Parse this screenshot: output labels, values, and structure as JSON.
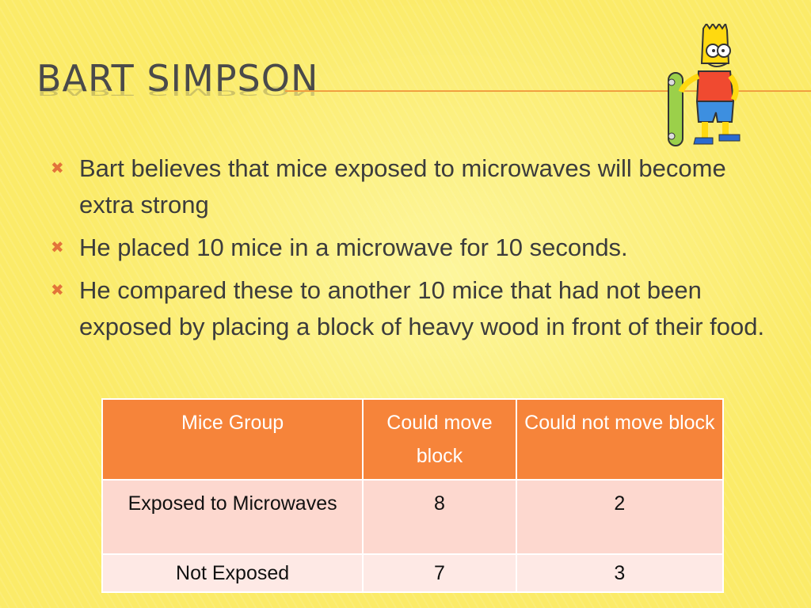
{
  "slide": {
    "title": "BART SIMPSON",
    "image_alt": "Bart Simpson with skateboard",
    "bullets": [
      "Bart believes that mice exposed to microwaves will become extra strong",
      "He placed 10 mice in a microwave for 10 seconds.",
      "He compared these to another 10 mice that had not been exposed by placing a block of heavy wood in front of their food."
    ],
    "bullet_icon": "x-mark-icon"
  },
  "table": {
    "headers": [
      "Mice Group",
      "Could move block",
      "Could not move block"
    ],
    "rows": [
      [
        "Exposed to Microwaves",
        "8",
        "2"
      ],
      [
        "Not Exposed",
        "7",
        "3"
      ]
    ]
  },
  "colors": {
    "background": "#fbeb68",
    "accent": "#f6843a",
    "row_light": "#fdd8cf",
    "row_lighter": "#fee9e5",
    "text": "#3c3c3c"
  }
}
